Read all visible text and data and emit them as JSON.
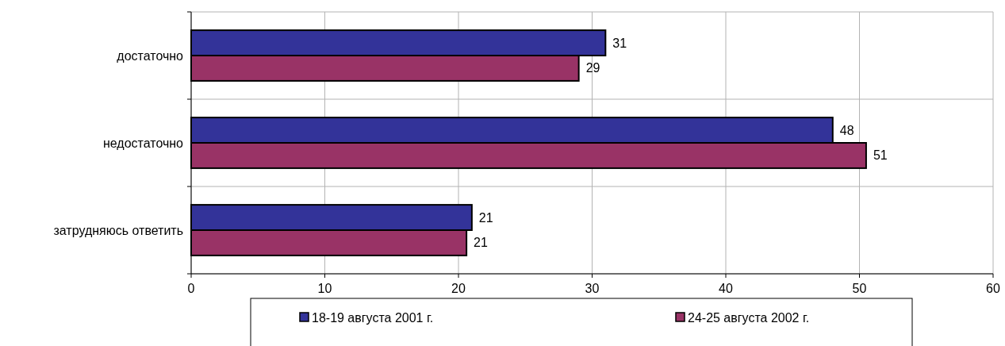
{
  "chart_data": {
    "type": "bar",
    "orientation": "horizontal",
    "categories": [
      "достаточно",
      "недостаточно",
      "затрудняюсь ответить"
    ],
    "series": [
      {
        "name": "18-19 августа 2001 г.",
        "color": "#333399",
        "values": [
          31,
          48,
          21
        ],
        "value_labels": [
          "31",
          "48",
          "21"
        ]
      },
      {
        "name": "24-25 августа 2002 г.",
        "color": "#993366",
        "values": [
          29,
          50.5,
          20.6
        ],
        "value_labels": [
          "29",
          "51",
          "21"
        ]
      }
    ],
    "xlim": [
      0,
      60
    ],
    "xticks": [
      0,
      10,
      20,
      30,
      40,
      50,
      60
    ],
    "grid": true,
    "legend": "bottom"
  }
}
